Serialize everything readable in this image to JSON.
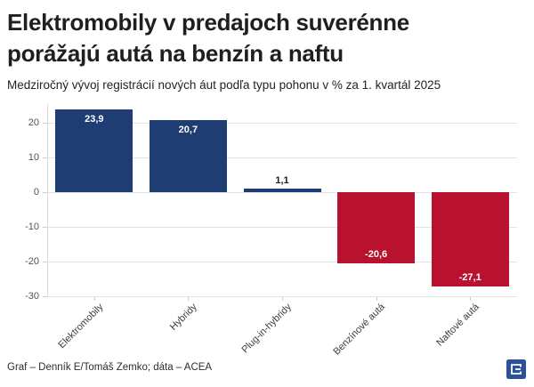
{
  "header": {
    "title_line1": "Elektromobily v predajoch suverénne",
    "title_line2": "porážajú autá na benzín a naftu",
    "subtitle": "Medziročný vývoj registrácií nových áut podľa typu pohonu v % za 1. kvartál 2025"
  },
  "chart_data": {
    "type": "bar",
    "categories": [
      "Elektromobily",
      "Hybridy",
      "Plug-in-hybridy",
      "Benzínové autá",
      "Naftové autá"
    ],
    "values": [
      23.9,
      20.7,
      1.1,
      -20.6,
      -27.1
    ],
    "value_labels": [
      "23,9",
      "20,7",
      "1,1",
      "-20,6",
      "-27,1"
    ],
    "title": "Elektromobily v predajoch suverénne porážajú autá na benzín a naftu",
    "subtitle": "Medziročný vývoj registrácií nových áut podľa typu pohonu v % za 1. kvartál 2025",
    "xlabel": "",
    "ylabel": "",
    "ylim": [
      -30,
      25.4
    ],
    "yticks": [
      20,
      10,
      0,
      -10,
      -20,
      -30
    ],
    "grid": true,
    "legend": "none",
    "positive_color": "#1e3d73",
    "negative_color": "#b8122f"
  },
  "footer": {
    "credit": "Graf – Denník E/Tomáš Zemko; dáta – ACEA"
  },
  "logo": {
    "name": "dennik-e-logo",
    "background_color": "#2d5199",
    "glyph_color": "#ffffff"
  }
}
